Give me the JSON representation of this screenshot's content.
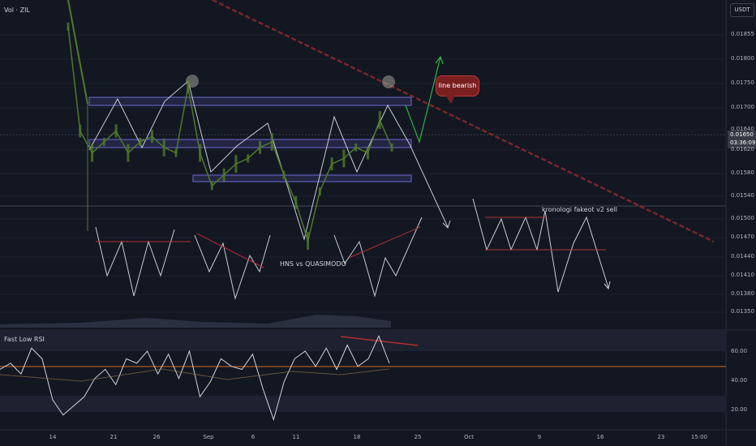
{
  "header": {
    "volume_label": "Vol · ZIL",
    "currency": "USDT"
  },
  "price": {
    "current": "0.01650",
    "countdown": "03:36:09"
  },
  "annotations": {
    "callout": "line bearish",
    "pattern_compare": "HNS vs QUASIMODO",
    "projection": "kronologi fakeot v2 sell"
  },
  "rsi": {
    "title": "Fast Low RSI",
    "ticks": [
      "60.00",
      "40.00",
      "20.00"
    ],
    "level": 50
  },
  "colors": {
    "background": "#131722",
    "candle_up": "#4f7a2b",
    "zone": "#6e6ad6",
    "trendline": "#8b2a2a",
    "arrow_green": "#2fb344",
    "rsi_line": "#d1d4dc",
    "rsi_level": "#d2691e"
  },
  "chart_data": {
    "type": "line",
    "title": "",
    "y_ticks": [
      0.01855,
      0.018,
      0.0175,
      0.017,
      0.0164,
      0.0162,
      0.0158,
      0.0154,
      0.015,
      0.0147,
      0.0144,
      0.0141,
      0.0138,
      0.0135
    ],
    "y_tick_labels": [
      "0.01855",
      "0.01800",
      "0.01750",
      "0.01700",
      "0.01640",
      "0.01620",
      "0.01580",
      "0.01540",
      "0.01500",
      "0.01470",
      "0.01440",
      "0.01410",
      "0.01380",
      "0.01350"
    ],
    "x_ticks": [
      "14",
      "21",
      "26",
      "Sep",
      "6",
      "11",
      "18",
      "25",
      "Oct",
      "9",
      "16",
      "23",
      "15:00"
    ],
    "series": [
      {
        "values": [
          0.0187,
          0.0168,
          0.0164,
          0.0166,
          0.0168,
          0.0164,
          0.0166,
          0.0167,
          0.0165,
          0.0164,
          0.0176,
          0.0164,
          0.0158,
          0.016,
          0.0162,
          0.0163,
          0.0165,
          0.0166,
          0.016,
          0.0155,
          0.0148,
          0.0157,
          0.0162,
          0.0163,
          0.0165,
          0.0164,
          0.017,
          0.0165
        ]
      }
    ],
    "ylim": [
      0.0133,
      0.0188
    ]
  }
}
